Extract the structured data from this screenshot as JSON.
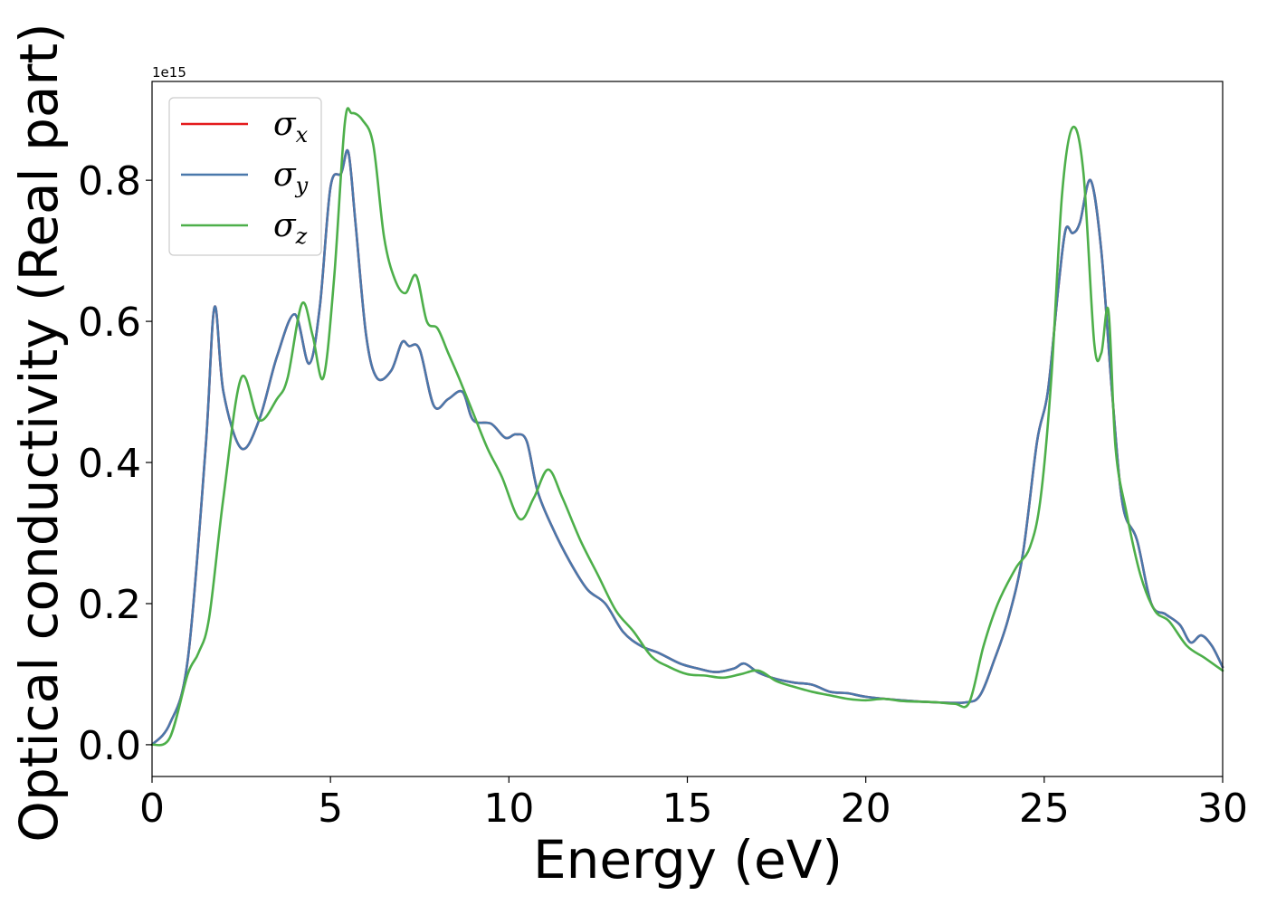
{
  "chart_data": {
    "type": "line",
    "title": "",
    "xlabel": "Energy (eV)",
    "ylabel": "Optical conductivity (Real part)",
    "y_offset_text": "1e15",
    "xlim": [
      0,
      30
    ],
    "ylim": [
      -0.045,
      0.94
    ],
    "xticks": [
      0,
      5,
      10,
      15,
      20,
      25,
      30
    ],
    "xtick_labels": [
      "0",
      "5",
      "10",
      "15",
      "20",
      "25",
      "30"
    ],
    "yticks": [
      0.0,
      0.2,
      0.4,
      0.6,
      0.8
    ],
    "ytick_labels": [
      "0.0",
      "0.2",
      "0.4",
      "0.6",
      "0.8"
    ],
    "grid": false,
    "legend_position": "upper-left",
    "series": [
      {
        "name": "σx",
        "legend_symbol": "σ",
        "legend_subscript": "x",
        "color": "#e41a1c",
        "x": [
          0,
          0.5,
          1.0,
          1.5,
          1.75,
          2.0,
          2.5,
          3.0,
          3.5,
          4.0,
          4.4,
          4.7,
          5.0,
          5.3,
          5.5,
          5.7,
          6.0,
          6.3,
          6.7,
          7.0,
          7.2,
          7.5,
          7.9,
          8.3,
          8.7,
          9.0,
          9.5,
          9.9,
          10.2,
          10.5,
          10.8,
          11.2,
          11.7,
          12.2,
          12.7,
          13.2,
          13.7,
          14.2,
          14.8,
          15.3,
          15.8,
          16.3,
          16.6,
          17.0,
          17.5,
          18.0,
          18.5,
          19.0,
          19.5,
          20.0,
          21.0,
          22.0,
          22.8,
          23.2,
          23.6,
          24.0,
          24.4,
          24.8,
          25.1,
          25.4,
          25.6,
          25.8,
          26.0,
          26.3,
          26.6,
          26.9,
          27.2,
          27.6,
          28.0,
          28.4,
          28.8,
          29.1,
          29.4,
          29.7,
          30.0
        ],
        "values": [
          0.0,
          0.03,
          0.12,
          0.42,
          0.62,
          0.5,
          0.42,
          0.46,
          0.55,
          0.61,
          0.54,
          0.62,
          0.79,
          0.81,
          0.84,
          0.74,
          0.58,
          0.52,
          0.53,
          0.57,
          0.565,
          0.56,
          0.48,
          0.49,
          0.5,
          0.46,
          0.455,
          0.435,
          0.44,
          0.43,
          0.36,
          0.31,
          0.26,
          0.22,
          0.2,
          0.16,
          0.14,
          0.13,
          0.115,
          0.108,
          0.103,
          0.108,
          0.115,
          0.102,
          0.093,
          0.088,
          0.085,
          0.075,
          0.073,
          0.068,
          0.063,
          0.06,
          0.06,
          0.07,
          0.12,
          0.18,
          0.27,
          0.43,
          0.5,
          0.65,
          0.73,
          0.725,
          0.74,
          0.8,
          0.7,
          0.5,
          0.34,
          0.29,
          0.2,
          0.185,
          0.17,
          0.145,
          0.155,
          0.14,
          0.11
        ]
      },
      {
        "name": "σy",
        "legend_symbol": "σ",
        "legend_subscript": "y",
        "color": "#4a78ab",
        "x": [
          0,
          0.5,
          1.0,
          1.5,
          1.75,
          2.0,
          2.5,
          3.0,
          3.5,
          4.0,
          4.4,
          4.7,
          5.0,
          5.3,
          5.5,
          5.7,
          6.0,
          6.3,
          6.7,
          7.0,
          7.2,
          7.5,
          7.9,
          8.3,
          8.7,
          9.0,
          9.5,
          9.9,
          10.2,
          10.5,
          10.8,
          11.2,
          11.7,
          12.2,
          12.7,
          13.2,
          13.7,
          14.2,
          14.8,
          15.3,
          15.8,
          16.3,
          16.6,
          17.0,
          17.5,
          18.0,
          18.5,
          19.0,
          19.5,
          20.0,
          21.0,
          22.0,
          22.8,
          23.2,
          23.6,
          24.0,
          24.4,
          24.8,
          25.1,
          25.4,
          25.6,
          25.8,
          26.0,
          26.3,
          26.6,
          26.9,
          27.2,
          27.6,
          28.0,
          28.4,
          28.8,
          29.1,
          29.4,
          29.7,
          30.0
        ],
        "values": [
          0.0,
          0.03,
          0.12,
          0.42,
          0.62,
          0.5,
          0.42,
          0.46,
          0.55,
          0.61,
          0.54,
          0.62,
          0.79,
          0.81,
          0.84,
          0.74,
          0.58,
          0.52,
          0.53,
          0.57,
          0.565,
          0.56,
          0.48,
          0.49,
          0.5,
          0.46,
          0.455,
          0.435,
          0.44,
          0.43,
          0.36,
          0.31,
          0.26,
          0.22,
          0.2,
          0.16,
          0.14,
          0.13,
          0.115,
          0.108,
          0.103,
          0.108,
          0.115,
          0.102,
          0.093,
          0.088,
          0.085,
          0.075,
          0.073,
          0.068,
          0.063,
          0.06,
          0.06,
          0.07,
          0.12,
          0.18,
          0.27,
          0.43,
          0.5,
          0.65,
          0.73,
          0.725,
          0.74,
          0.8,
          0.7,
          0.5,
          0.34,
          0.29,
          0.2,
          0.185,
          0.17,
          0.145,
          0.155,
          0.14,
          0.11
        ]
      },
      {
        "name": "σz",
        "legend_symbol": "σ",
        "legend_subscript": "z",
        "color": "#4daf4a",
        "x": [
          0,
          0.5,
          1.0,
          1.3,
          1.6,
          2.0,
          2.5,
          3.0,
          3.5,
          3.8,
          4.2,
          4.5,
          4.8,
          5.1,
          5.4,
          5.6,
          5.9,
          6.2,
          6.5,
          6.8,
          7.1,
          7.4,
          7.7,
          8.0,
          8.3,
          8.6,
          9.0,
          9.4,
          9.8,
          10.3,
          10.7,
          11.1,
          11.5,
          12.0,
          12.5,
          13.0,
          13.5,
          14.0,
          14.5,
          15.0,
          15.5,
          16.0,
          16.5,
          17.0,
          17.5,
          18.0,
          18.5,
          19.0,
          19.5,
          20.0,
          20.5,
          21.0,
          21.5,
          22.0,
          22.5,
          22.9,
          23.3,
          23.7,
          24.2,
          24.6,
          24.9,
          25.2,
          25.5,
          25.8,
          26.1,
          26.4,
          26.6,
          26.8,
          27.0,
          27.3,
          27.7,
          28.1,
          28.5,
          29.0,
          29.5,
          30.0
        ],
        "values": [
          0.0,
          0.01,
          0.1,
          0.13,
          0.18,
          0.35,
          0.52,
          0.46,
          0.49,
          0.52,
          0.625,
          0.58,
          0.52,
          0.66,
          0.88,
          0.895,
          0.885,
          0.85,
          0.72,
          0.66,
          0.64,
          0.665,
          0.6,
          0.59,
          0.555,
          0.52,
          0.47,
          0.42,
          0.38,
          0.32,
          0.35,
          0.39,
          0.35,
          0.29,
          0.24,
          0.19,
          0.16,
          0.125,
          0.11,
          0.1,
          0.098,
          0.095,
          0.1,
          0.105,
          0.09,
          0.082,
          0.075,
          0.07,
          0.065,
          0.063,
          0.065,
          0.062,
          0.061,
          0.06,
          0.058,
          0.06,
          0.14,
          0.2,
          0.25,
          0.28,
          0.35,
          0.52,
          0.78,
          0.875,
          0.81,
          0.57,
          0.555,
          0.615,
          0.42,
          0.33,
          0.24,
          0.19,
          0.175,
          0.14,
          0.123,
          0.105
        ]
      }
    ]
  }
}
